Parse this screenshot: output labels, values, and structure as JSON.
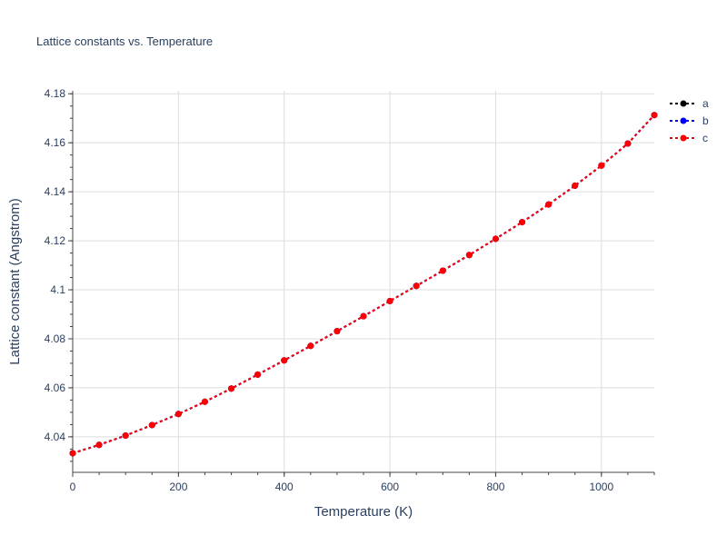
{
  "chart_data": {
    "type": "line",
    "title": "Lattice constants vs. Temperature",
    "xlabel": "Temperature (K)",
    "ylabel": "Lattice constant (Angstrom)",
    "xlim": [
      0,
      1100
    ],
    "ylim": [
      4.0255,
      4.1812
    ],
    "grid": true,
    "legend_position": "top-right",
    "x_ticks": [
      0,
      200,
      400,
      600,
      800,
      1000
    ],
    "x_tick_labels": [
      "0",
      "200",
      "400",
      "600",
      "800",
      "1000"
    ],
    "y_ticks": [
      4.04,
      4.06,
      4.08,
      4.1,
      4.12,
      4.14,
      4.16,
      4.18
    ],
    "y_tick_labels": [
      "4.04",
      "4.06",
      "4.08",
      "4.1",
      "4.12",
      "4.14",
      "4.16",
      "4.18"
    ],
    "x": [
      0,
      50,
      100,
      150,
      200,
      250,
      300,
      350,
      400,
      450,
      500,
      550,
      600,
      650,
      700,
      750,
      800,
      850,
      900,
      950,
      1000,
      1050,
      1100
    ],
    "series": [
      {
        "name": "a",
        "color": "#000000",
        "values": [
          4.0333,
          4.0367,
          4.0405,
          4.0448,
          4.0493,
          4.0543,
          4.0597,
          4.0654,
          4.0712,
          4.0771,
          4.0831,
          4.0892,
          4.0954,
          4.1016,
          4.1078,
          4.1142,
          4.1208,
          4.1276,
          4.1348,
          4.1425,
          4.1507,
          4.1597,
          4.1713
        ]
      },
      {
        "name": "b",
        "color": "#0000ff",
        "values": [
          4.0333,
          4.0367,
          4.0405,
          4.0448,
          4.0493,
          4.0543,
          4.0597,
          4.0654,
          4.0712,
          4.0771,
          4.0831,
          4.0892,
          4.0954,
          4.1016,
          4.1078,
          4.1142,
          4.1208,
          4.1276,
          4.1348,
          4.1425,
          4.1507,
          4.1597,
          4.1713
        ]
      },
      {
        "name": "c",
        "color": "#ff0000",
        "values": [
          4.0333,
          4.0367,
          4.0405,
          4.0448,
          4.0493,
          4.0543,
          4.0597,
          4.0654,
          4.0712,
          4.0771,
          4.0831,
          4.0892,
          4.0954,
          4.1016,
          4.1078,
          4.1142,
          4.1208,
          4.1276,
          4.1348,
          4.1425,
          4.1507,
          4.1597,
          4.1713
        ]
      }
    ]
  }
}
